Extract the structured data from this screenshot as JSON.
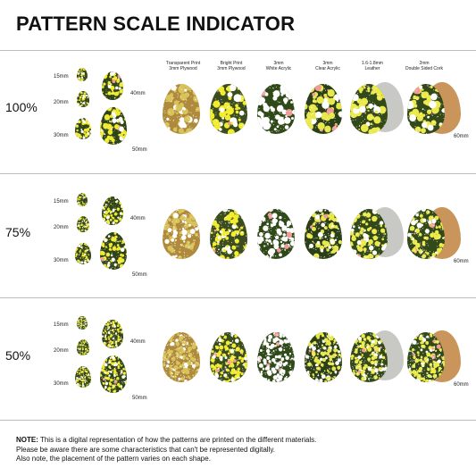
{
  "title": "PATTERN SCALE INDICATOR",
  "materials": [
    {
      "line1": "Transparent Print",
      "line2": "3mm Plywood",
      "fill": "#b08a3c",
      "dots": "#d8c25a"
    },
    {
      "line1": "Bright Print",
      "line2": "3mm Plywood",
      "fill": "#3b4d1e",
      "dots": "#f2ec2a"
    },
    {
      "line1": "3mm",
      "line2": "White Acrylic",
      "fill": "#2f4a18",
      "dots": "#ffffff"
    },
    {
      "line1": "3mm",
      "line2": "Clear Acrylic",
      "fill": "#2a3f18",
      "dots": "#e9e84a"
    },
    {
      "line1": "1.6-1.8mm",
      "line2": "Leather",
      "fill": "#33491a",
      "dots": "#ece94a"
    },
    {
      "line1": "2mm",
      "line2": "Double Sided Cork",
      "fill": "#33491a",
      "dots": "#ece94a"
    }
  ],
  "colors": {
    "pattern_bg": "#2f4318",
    "pattern_yellow": "#f0ea2e",
    "pattern_white": "#ffffff",
    "pattern_pink": "#f29a9a",
    "leather_grey": "#c8c8c4",
    "cork": "#c9955a"
  },
  "rows": [
    {
      "scale": "100%",
      "sizes": [
        "15mm",
        "20mm",
        "30mm",
        "40mm",
        "50mm"
      ],
      "big": "60mm"
    },
    {
      "scale": "75%",
      "sizes": [
        "15mm",
        "20mm",
        "30mm",
        "40mm",
        "50mm"
      ],
      "big": "60mm"
    },
    {
      "scale": "50%",
      "sizes": [
        "15mm",
        "20mm",
        "30mm",
        "40mm",
        "50mm"
      ],
      "big": "60mm"
    }
  ],
  "note": {
    "label": "NOTE:",
    "line1": "This is a digital representation of how the patterns are printed on the different materials.",
    "line2": "Please be aware there are some characteristics that can't be represented digitally.",
    "line3": "Also note, the placement of the pattern varies on each shape."
  }
}
